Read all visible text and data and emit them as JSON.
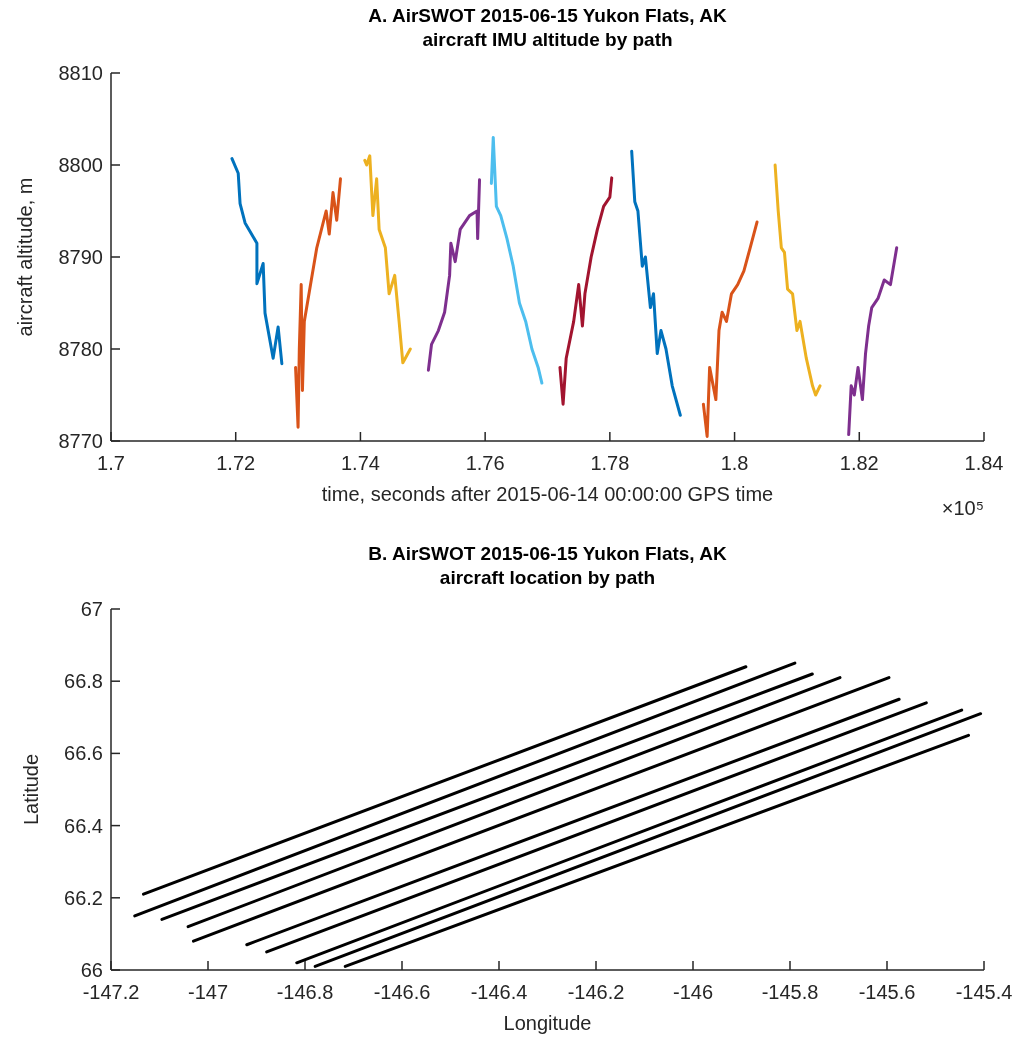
{
  "chart_data": [
    {
      "type": "line",
      "title": "A. AirSWOT 2015-06-15 Yukon Flats, AK\naircraft IMU altitude by path",
      "xlabel": "time, seconds after 2015-06-14 00:00:00 GPS time",
      "ylabel": "aircraft altitude, m",
      "annotations": [
        "×10⁵"
      ],
      "xlim": [
        1.7,
        1.84
      ],
      "xticks": [
        1.7,
        1.72,
        1.74,
        1.76,
        1.78,
        1.8,
        1.82,
        1.84
      ],
      "ylim": [
        8770,
        8810
      ],
      "yticks": [
        8770,
        8780,
        8790,
        8800,
        8810
      ],
      "series": [
        {
          "color": "#0072bd",
          "x": [
            1.7194,
            1.7204,
            1.7207,
            1.7215,
            1.7234,
            1.7234,
            1.7244,
            1.7247,
            1.726,
            1.7268,
            1.7274
          ],
          "values": [
            8800.7,
            8799.1,
            8795.8,
            8793.7,
            8791.5,
            8787.1,
            8789.3,
            8783.9,
            8779,
            8782.4,
            8778.4
          ]
        },
        {
          "color": "#d95319",
          "x": [
            1.7296,
            1.73,
            1.7302,
            1.7305,
            1.7307,
            1.731,
            1.732,
            1.733,
            1.7345,
            1.735,
            1.7356,
            1.7362,
            1.7368
          ],
          "values": [
            8778,
            8771.5,
            8780,
            8787,
            8775.5,
            8783,
            8787,
            8791,
            8795,
            8792.5,
            8797,
            8794,
            8798.5
          ]
        },
        {
          "color": "#edb120",
          "x": [
            1.7407,
            1.741,
            1.7415,
            1.742,
            1.7426,
            1.743,
            1.744,
            1.7446,
            1.7455,
            1.7462,
            1.7468,
            1.7472,
            1.748
          ],
          "values": [
            8800.5,
            8800,
            8801,
            8794.5,
            8798.5,
            8793,
            8791,
            8786,
            8788,
            8783,
            8778.5,
            8779,
            8780
          ]
        },
        {
          "color": "#7e2f8e",
          "x": [
            1.7509,
            1.7514,
            1.7525,
            1.7535,
            1.7543,
            1.7545,
            1.7552,
            1.756,
            1.7575,
            1.7587,
            1.7588,
            1.7591
          ],
          "values": [
            8777.7,
            8780.5,
            8782,
            8784,
            8788,
            8791.5,
            8789.5,
            8793,
            8794.5,
            8795,
            8792,
            8798.4
          ]
        },
        {
          "color": "#4dbeee",
          "x": [
            1.761,
            1.7613,
            1.7618,
            1.7625,
            1.7635,
            1.7645,
            1.7655,
            1.7665,
            1.7675,
            1.7685,
            1.7691
          ],
          "values": [
            8798,
            8803,
            8795.5,
            8794.5,
            8792,
            8789,
            8785,
            8783,
            8780,
            8778,
            8776.3
          ]
        },
        {
          "color": "#a2142f",
          "x": [
            1.772,
            1.7725,
            1.773,
            1.7742,
            1.775,
            1.7756,
            1.776,
            1.777,
            1.778,
            1.779,
            1.78,
            1.7803
          ],
          "values": [
            8778,
            8774,
            8779,
            8783,
            8787,
            8782.5,
            8786,
            8790,
            8793,
            8795.5,
            8796.5,
            8798.6
          ]
        },
        {
          "color": "#0072bd",
          "x": [
            1.7835,
            1.784,
            1.7845,
            1.7852,
            1.7857,
            1.7865,
            1.787,
            1.7876,
            1.7882,
            1.789,
            1.79,
            1.7913
          ],
          "values": [
            8801.5,
            8796,
            8795,
            8789,
            8790,
            8784.5,
            8786,
            8779.5,
            8782,
            8780,
            8776,
            8772.8
          ]
        },
        {
          "color": "#d95319",
          "x": [
            1.795,
            1.7956,
            1.796,
            1.797,
            1.7975,
            1.798,
            1.7987,
            1.7995,
            1.8005,
            1.8015,
            1.8025,
            1.8036
          ],
          "values": [
            8774,
            8770.5,
            8778,
            8774.5,
            8782,
            8784,
            8783,
            8786,
            8787,
            8788.5,
            8791,
            8793.8
          ]
        },
        {
          "color": "#edb120",
          "x": [
            1.8065,
            1.807,
            1.8075,
            1.808,
            1.8085,
            1.8093,
            1.81,
            1.8105,
            1.8115,
            1.8125,
            1.813,
            1.8137
          ],
          "values": [
            8800,
            8795,
            8791,
            8790.5,
            8786.5,
            8786,
            8782,
            8783,
            8779,
            8776,
            8775,
            8776
          ]
        },
        {
          "color": "#7e2f8e",
          "x": [
            1.8183,
            1.8187,
            1.8192,
            1.8198,
            1.8205,
            1.821,
            1.8215,
            1.822,
            1.823,
            1.824,
            1.825,
            1.826
          ],
          "values": [
            8770.7,
            8776,
            8775,
            8778,
            8774.5,
            8779.5,
            8782.5,
            8784.5,
            8785.5,
            8787.5,
            8787,
            8791
          ]
        }
      ]
    },
    {
      "type": "line",
      "title": "B. AirSWOT 2015-06-15 Yukon Flats, AK\naircraft location by path",
      "xlabel": "Longitude",
      "ylabel": "Latitude",
      "xlim": [
        -147.2,
        -145.4
      ],
      "xticks": [
        -147.2,
        -147,
        -146.8,
        -146.6,
        -146.4,
        -146.2,
        -146,
        -145.8,
        -145.6,
        -145.4
      ],
      "ylim": [
        66,
        67
      ],
      "yticks": [
        66,
        66.2,
        66.4,
        66.6,
        66.8,
        67
      ],
      "series": [
        {
          "color": "#000000",
          "x": [
            -147.133,
            -145.891
          ],
          "values": [
            66.21,
            66.84
          ]
        },
        {
          "color": "#000000",
          "x": [
            -147.151,
            -145.79
          ],
          "values": [
            66.15,
            66.85
          ]
        },
        {
          "color": "#000000",
          "x": [
            -147.095,
            -145.754
          ],
          "values": [
            66.14,
            66.82
          ]
        },
        {
          "color": "#000000",
          "x": [
            -147.041,
            -145.697
          ],
          "values": [
            66.12,
            66.81
          ]
        },
        {
          "color": "#000000",
          "x": [
            -147.03,
            -145.596
          ],
          "values": [
            66.08,
            66.81
          ]
        },
        {
          "color": "#000000",
          "x": [
            -146.92,
            -145.575
          ],
          "values": [
            66.07,
            66.75
          ]
        },
        {
          "color": "#000000",
          "x": [
            -146.879,
            -145.519
          ],
          "values": [
            66.05,
            66.74
          ]
        },
        {
          "color": "#000000",
          "x": [
            -146.817,
            -145.446
          ],
          "values": [
            66.02,
            66.72
          ]
        },
        {
          "color": "#000000",
          "x": [
            -146.779,
            -145.407
          ],
          "values": [
            66.01,
            66.71
          ]
        },
        {
          "color": "#000000",
          "x": [
            -146.717,
            -145.432
          ],
          "values": [
            66.01,
            66.65
          ]
        }
      ]
    }
  ]
}
